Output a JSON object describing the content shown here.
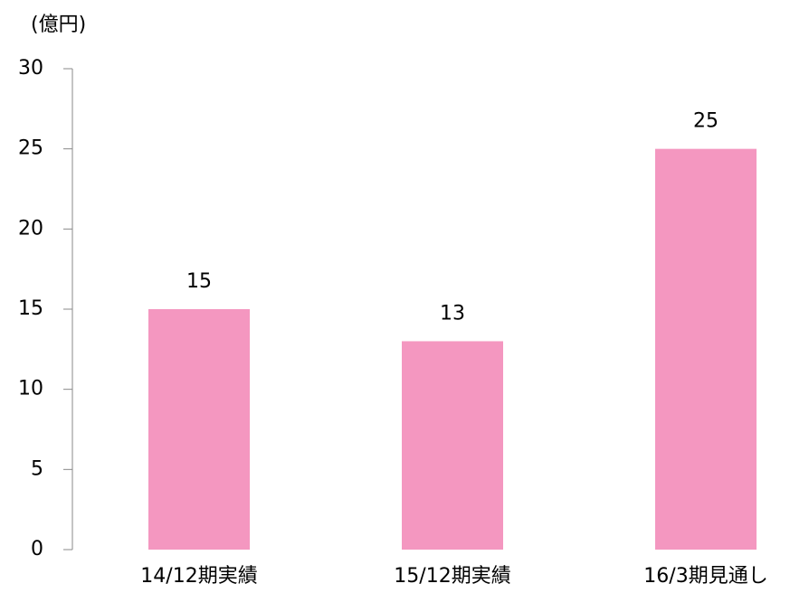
{
  "chart_data": {
    "type": "bar",
    "y_label": "(億円)",
    "categories": [
      "14/12期実績",
      "15/12期実績",
      "16/3期見通し"
    ],
    "values": [
      15,
      13,
      25
    ],
    "color": "#f497c0",
    "ylim": [
      0,
      30
    ],
    "yticks": [
      0,
      5,
      10,
      15,
      20,
      25,
      30
    ],
    "grid": false
  }
}
